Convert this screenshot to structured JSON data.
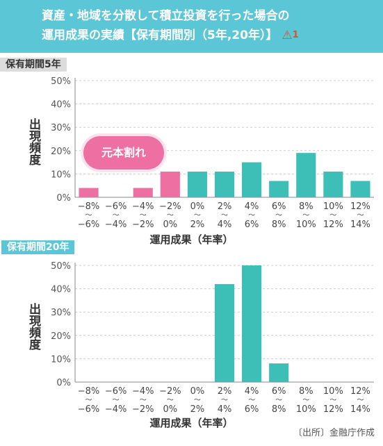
{
  "header": {
    "line1": "資産・地域を分散して積立投資を行った場合の",
    "line2": "運用成果の実績【保有期間別（5年,20年）】",
    "warning_number": "1"
  },
  "source": "〔出所〕金融庁作成",
  "annotation": "元本割れ",
  "colors": {
    "banner": "#5bc7d6",
    "loss_bar": "#ee6fa2",
    "gain_bar": "#3dbfb8",
    "tag_grey": "#dcdcdc",
    "warning": "#e24e2c"
  },
  "chart_data": [
    {
      "type": "bar",
      "title": "保有期間5年",
      "ylabel": "出現頻度",
      "xlabel": "運用成果（年率）",
      "ylim": [
        0,
        50
      ],
      "yticks": [
        "0%",
        "10%",
        "20%",
        "30%",
        "40%",
        "50%"
      ],
      "categories": [
        {
          "top": "−8%",
          "sep": "〜",
          "bottom": "−6%"
        },
        {
          "top": "−6%",
          "sep": "〜",
          "bottom": "−4%"
        },
        {
          "top": "−4%",
          "sep": "〜",
          "bottom": "−2%"
        },
        {
          "top": "−2%",
          "sep": "〜",
          "bottom": "0%"
        },
        {
          "top": "0%",
          "sep": "〜",
          "bottom": "2%"
        },
        {
          "top": "2%",
          "sep": "〜",
          "bottom": "4%"
        },
        {
          "top": "4%",
          "sep": "〜",
          "bottom": "6%"
        },
        {
          "top": "6%",
          "sep": "〜",
          "bottom": "8%"
        },
        {
          "top": "8%",
          "sep": "〜",
          "bottom": "10%"
        },
        {
          "top": "10%",
          "sep": "〜",
          "bottom": "12%"
        },
        {
          "top": "12%",
          "sep": "〜",
          "bottom": "14%"
        }
      ],
      "values": [
        4,
        0,
        4,
        11,
        11,
        11,
        15,
        7,
        19,
        11,
        7
      ],
      "loss_categories": 4,
      "grid": true
    },
    {
      "type": "bar",
      "title": "保有期間20年",
      "ylabel": "出現頻度",
      "xlabel": "運用成果（年率）",
      "ylim": [
        0,
        50
      ],
      "yticks": [
        "0%",
        "10%",
        "20%",
        "30%",
        "40%",
        "50%"
      ],
      "categories": [
        {
          "top": "−8%",
          "sep": "〜",
          "bottom": "−6%"
        },
        {
          "top": "−6%",
          "sep": "〜",
          "bottom": "−4%"
        },
        {
          "top": "−4%",
          "sep": "〜",
          "bottom": "−2%"
        },
        {
          "top": "−2%",
          "sep": "〜",
          "bottom": "0%"
        },
        {
          "top": "0%",
          "sep": "〜",
          "bottom": "2%"
        },
        {
          "top": "2%",
          "sep": "〜",
          "bottom": "4%"
        },
        {
          "top": "4%",
          "sep": "〜",
          "bottom": "6%"
        },
        {
          "top": "6%",
          "sep": "〜",
          "bottom": "8%"
        },
        {
          "top": "8%",
          "sep": "〜",
          "bottom": "10%"
        },
        {
          "top": "10%",
          "sep": "〜",
          "bottom": "12%"
        },
        {
          "top": "12%",
          "sep": "〜",
          "bottom": "14%"
        }
      ],
      "values": [
        0,
        0,
        0,
        0,
        0,
        42,
        50,
        8,
        0,
        0,
        0
      ],
      "loss_categories": 4,
      "grid": true
    }
  ]
}
